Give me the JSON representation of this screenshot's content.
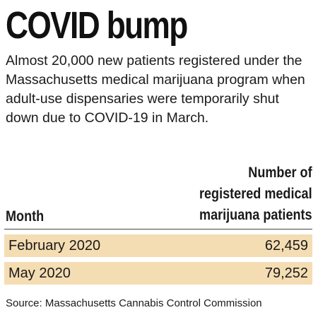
{
  "headline": "COVID bump",
  "subhead": "Almost 20,000 new patients registered under the Massachusetts medical marijuana program when adult-use dispensaries were temporarily shut down due to COVID-19 in March.",
  "chart_data": {
    "type": "table",
    "columns": [
      "Month",
      "Number of\nregistered medical\nmarijuana patients"
    ],
    "rows": [
      {
        "month": "February 2020",
        "value": "62,459"
      },
      {
        "month": "May 2020",
        "value": "79,252"
      }
    ],
    "colors": {
      "row_background": "#f5ddb3"
    }
  },
  "source": "Source: Massachusetts Cannabis Control Commission"
}
